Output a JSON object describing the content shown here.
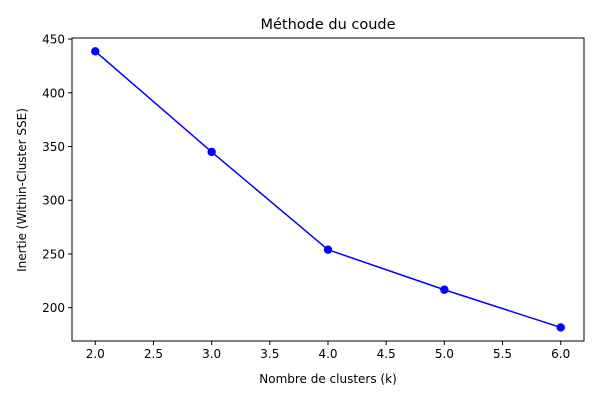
{
  "chart_data": {
    "type": "line",
    "title": "Méthode du coude",
    "xlabel": "Nombre de clusters (k)",
    "ylabel": "Inertie (Within-Cluster SSE)",
    "x": [
      2,
      3,
      4,
      5,
      6
    ],
    "series": [
      {
        "values": [
          438.6,
          345.0,
          254.0,
          216.7,
          181.6
        ],
        "color": "#0000ff",
        "marker": "circle"
      }
    ],
    "xlim": [
      1.8,
      6.2
    ],
    "ylim": [
      169,
      451
    ],
    "xticks": [
      "2.0",
      "2.5",
      "3.0",
      "3.5",
      "4.0",
      "4.5",
      "5.0",
      "5.5",
      "6.0"
    ],
    "xtick_values": [
      2.0,
      2.5,
      3.0,
      3.5,
      4.0,
      4.5,
      5.0,
      5.5,
      6.0
    ],
    "yticks": [
      "200",
      "250",
      "300",
      "350",
      "400",
      "450"
    ],
    "ytick_values": [
      200,
      250,
      300,
      350,
      400,
      450
    ],
    "grid": false,
    "legend": false
  }
}
